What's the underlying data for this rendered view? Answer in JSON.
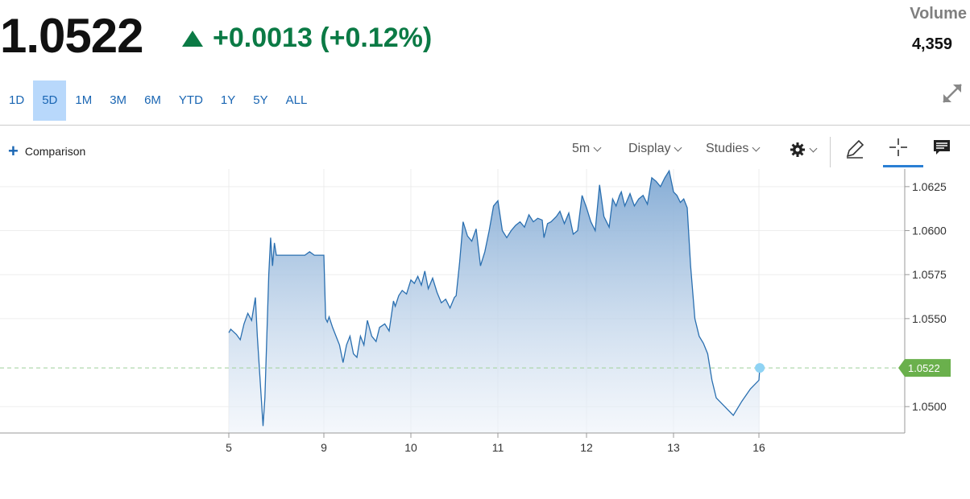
{
  "quote": {
    "price": "1.0522",
    "change": "+0.0013 (+0.12%)",
    "volume_label": "Volume",
    "volume_value": "4,359"
  },
  "ranges": [
    "1D",
    "5D",
    "1M",
    "3M",
    "6M",
    "YTD",
    "1Y",
    "5Y",
    "ALL"
  ],
  "active_range": "5D",
  "toolbar": {
    "comparison_label": "Comparison",
    "interval_label": "5m",
    "display_label": "Display",
    "studies_label": "Studies"
  },
  "colors": {
    "line": "#2a6fb0",
    "positive": "#0b7a45",
    "current_badge": "#6ab04c",
    "active_tab": "#b8d8fb"
  },
  "chart_data": {
    "type": "area",
    "x_ticks": [
      "5",
      "9",
      "10",
      "11",
      "12",
      "13",
      "16"
    ],
    "y_ticks": [
      "1.0625",
      "1.0600",
      "1.0575",
      "1.0550",
      "1.0500"
    ],
    "ylim": [
      1.0485,
      1.0635
    ],
    "current_value": "1.0522",
    "grid": true,
    "series": [
      {
        "x": [
          0,
          0.02,
          0.08,
          0.12,
          0.16,
          0.2,
          0.24,
          0.28,
          0.3,
          0.36,
          0.38,
          0.42,
          0.44,
          0.46,
          0.48,
          0.5,
          0.52,
          0.6,
          0.64,
          0.7,
          0.74,
          0.8,
          0.85,
          0.9,
          0.95,
          1.0,
          1.02,
          1.04,
          1.06,
          1.1,
          1.1,
          1.14,
          1.18,
          1.22,
          1.26,
          1.3,
          1.34,
          1.38,
          1.42,
          1.46,
          1.5,
          1.55,
          1.6,
          1.64,
          1.7,
          1.75,
          1.8,
          1.82,
          1.86,
          1.9,
          1.95,
          2.0,
          2.04,
          2.08,
          2.12,
          2.16,
          2.2,
          2.25,
          2.3,
          2.35,
          2.4,
          2.45,
          2.5,
          2.52,
          2.56,
          2.6,
          2.65,
          2.7,
          2.75,
          2.8,
          2.85,
          2.9,
          2.95,
          3.0,
          3.05,
          3.1,
          3.15,
          3.2,
          3.25,
          3.3,
          3.35,
          3.4,
          3.45,
          3.5,
          3.52,
          3.56,
          3.6,
          3.66,
          3.7,
          3.75,
          3.8,
          3.85,
          3.9,
          3.95,
          4.0,
          4.05,
          4.1,
          4.15,
          4.2,
          4.26,
          4.3,
          4.34,
          4.38,
          4.4,
          4.44,
          4.5,
          4.55,
          4.6,
          4.65,
          4.7,
          4.75,
          4.8,
          4.85,
          4.9,
          4.95,
          5.0,
          5.04,
          5.08,
          5.12,
          5.16,
          5.2,
          5.25,
          5.3,
          5.35,
          5.4,
          5.45,
          5.5,
          5.6,
          5.7,
          5.8,
          5.9,
          6.0,
          6.01
        ],
        "y": [
          1.0542,
          1.0544,
          1.0541,
          1.0538,
          1.0547,
          1.0553,
          1.0549,
          1.0562,
          1.054,
          1.0489,
          1.0505,
          1.0575,
          1.0596,
          1.058,
          1.0593,
          1.0586,
          1.0586,
          1.0586,
          1.0586,
          1.0586,
          1.0586,
          1.0586,
          1.0588,
          1.0586,
          1.0586,
          1.0586,
          1.055,
          1.0548,
          1.0551,
          1.0545,
          1.0545,
          1.054,
          1.0535,
          1.0525,
          1.0535,
          1.054,
          1.053,
          1.0528,
          1.054,
          1.0535,
          1.0549,
          1.054,
          1.0537,
          1.0545,
          1.0547,
          1.0543,
          1.056,
          1.0557,
          1.0563,
          1.0566,
          1.0564,
          1.0572,
          1.057,
          1.0574,
          1.0569,
          1.0577,
          1.0567,
          1.0573,
          1.0565,
          1.0559,
          1.0561,
          1.0556,
          1.0562,
          1.0563,
          1.0582,
          1.0605,
          1.0597,
          1.0594,
          1.0601,
          1.058,
          1.0588,
          1.06,
          1.0614,
          1.0617,
          1.06,
          1.0596,
          1.06,
          1.0603,
          1.0605,
          1.0602,
          1.0609,
          1.0605,
          1.0607,
          1.0606,
          1.0596,
          1.0604,
          1.0605,
          1.0608,
          1.0611,
          1.0604,
          1.061,
          1.0598,
          1.06,
          1.062,
          1.0613,
          1.0605,
          1.06,
          1.0626,
          1.0608,
          1.0602,
          1.0618,
          1.0614,
          1.062,
          1.0622,
          1.0614,
          1.0621,
          1.0614,
          1.0618,
          1.062,
          1.0615,
          1.063,
          1.0628,
          1.0625,
          1.063,
          1.0634,
          1.0622,
          1.062,
          1.0616,
          1.0618,
          1.0613,
          1.058,
          1.055,
          1.054,
          1.0536,
          1.053,
          1.0515,
          1.0505,
          1.05,
          1.0495,
          1.0503,
          1.051,
          1.0515,
          1.0522
        ]
      }
    ]
  }
}
